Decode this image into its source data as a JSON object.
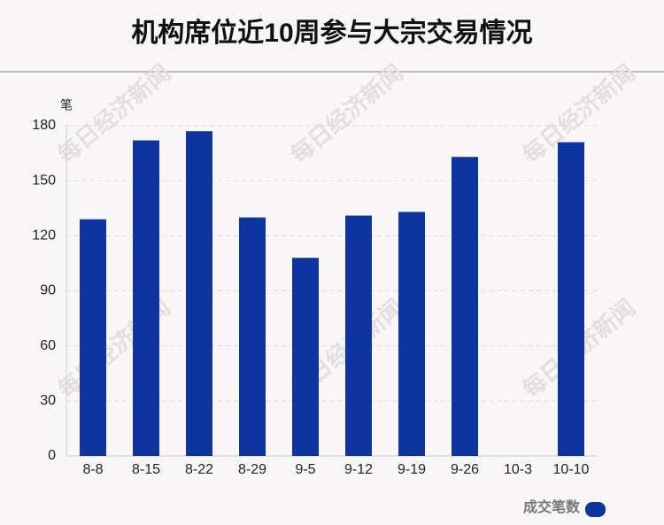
{
  "chart_data": {
    "type": "bar",
    "title": "机构席位近10周参与大宗交易情况",
    "y_label": "笔",
    "categories": [
      "8-8",
      "8-15",
      "8-22",
      "8-29",
      "9-5",
      "9-12",
      "9-19",
      "9-26",
      "10-3",
      "10-10"
    ],
    "series": [
      {
        "name": "成交笔数",
        "color": "#0c35a0",
        "values": [
          129,
          172,
          177,
          130,
          108,
          131,
          133,
          163,
          0,
          171
        ]
      }
    ],
    "ylim": [
      0,
      180
    ],
    "yticks": [
      0,
      30,
      60,
      90,
      120,
      150,
      180
    ],
    "grid": true,
    "legend": "bottom-right",
    "watermark": "每日经济新闻"
  }
}
